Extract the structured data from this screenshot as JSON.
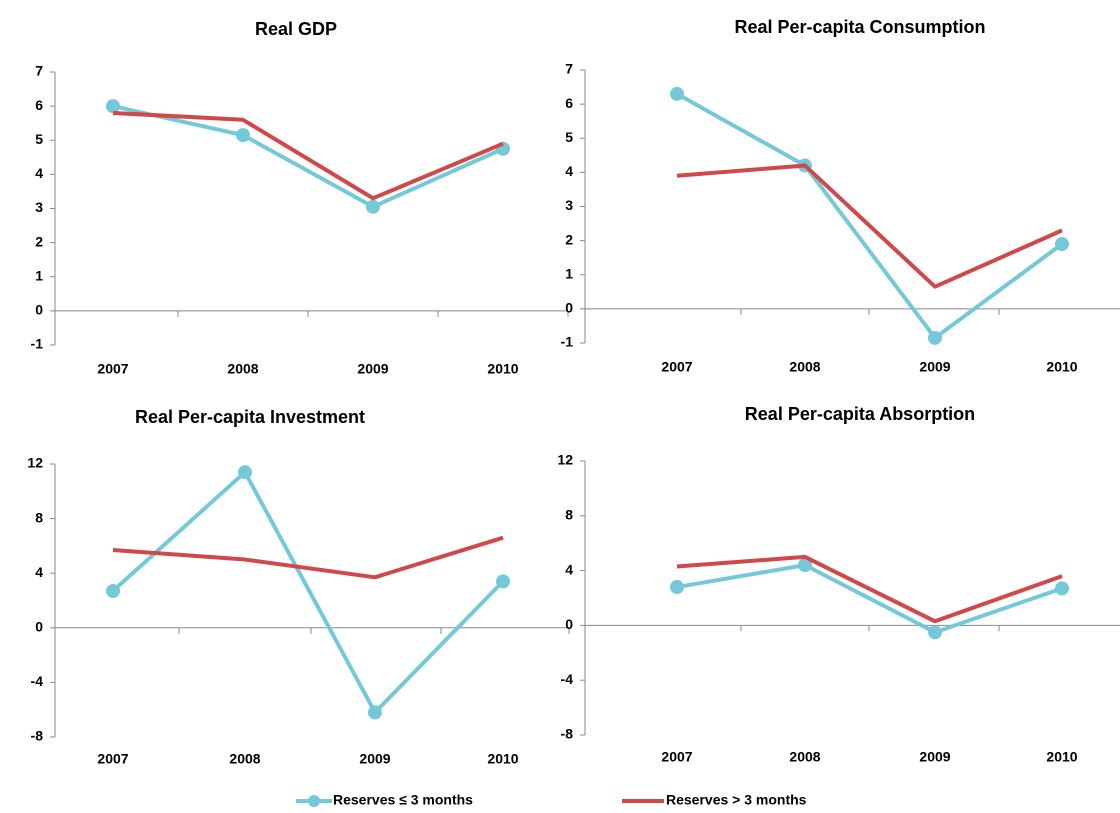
{
  "chart_data": [
    {
      "type": "line",
      "title": "Real GDP",
      "categories": [
        "2007",
        "2008",
        "2009",
        "2010"
      ],
      "series": [
        {
          "name": "Reserves ≤ 3 months",
          "color": "#74c9d9",
          "values": [
            6.0,
            5.15,
            3.05,
            4.75
          ]
        },
        {
          "name": "Reserves > 3 months",
          "color": "#d0484a",
          "values": [
            5.8,
            5.6,
            3.3,
            4.9
          ]
        }
      ],
      "ylim": [
        -1,
        7
      ],
      "yticks": [
        -1,
        0,
        1,
        2,
        3,
        4,
        5,
        6,
        7
      ]
    },
    {
      "type": "line",
      "title": "Real Per-capita Consumption",
      "categories": [
        "2007",
        "2008",
        "2009",
        "2010"
      ],
      "series": [
        {
          "color": "#74c9d9",
          "values": [
            6.3,
            4.2,
            -0.85,
            1.9
          ]
        },
        {
          "color": "#d0484a",
          "values": [
            3.9,
            4.2,
            0.65,
            2.3
          ]
        }
      ],
      "ylim": [
        -1,
        7
      ],
      "yticks": [
        -1,
        0,
        1,
        2,
        3,
        4,
        5,
        6,
        7
      ]
    },
    {
      "type": "line",
      "title": "Real Per-capita Investment",
      "categories": [
        "2007",
        "2008",
        "2009",
        "2010"
      ],
      "series": [
        {
          "color": "#74c9d9",
          "values": [
            2.7,
            11.4,
            -6.2,
            3.4
          ]
        },
        {
          "color": "#d0484a",
          "values": [
            5.7,
            5.0,
            3.7,
            6.6
          ]
        }
      ],
      "ylim": [
        -8,
        12
      ],
      "yticks": [
        -8,
        -4,
        0,
        4,
        8,
        12
      ]
    },
    {
      "type": "line",
      "title": "Real Per-capita Absorption",
      "categories": [
        "2007",
        "2008",
        "2009",
        "2010"
      ],
      "series": [
        {
          "color": "#74c9d9",
          "values": [
            2.8,
            4.4,
            -0.5,
            2.7
          ]
        },
        {
          "color": "#d0484a",
          "values": [
            4.3,
            5.0,
            0.3,
            3.6
          ]
        }
      ],
      "ylim": [
        -8,
        12
      ],
      "yticks": [
        -8,
        -4,
        0,
        4,
        8,
        12
      ]
    }
  ]
}
